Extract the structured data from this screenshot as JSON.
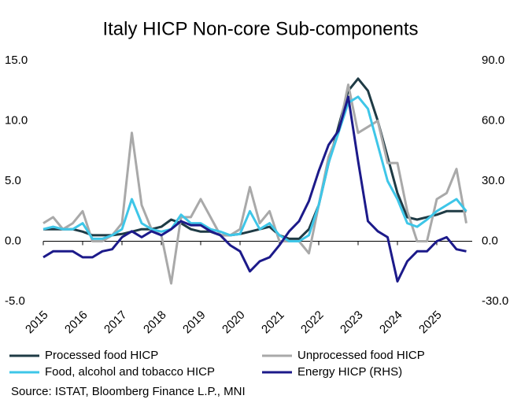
{
  "chart_data": {
    "type": "line",
    "title": "Italy HICP Non-core Sub-components",
    "source": "Source: ISTAT, Bloomberg Finance L.P., MNI",
    "x": [
      2015,
      2015.25,
      2015.5,
      2015.75,
      2016,
      2016.25,
      2016.5,
      2016.75,
      2017,
      2017.25,
      2017.5,
      2017.75,
      2018,
      2018.25,
      2018.5,
      2018.75,
      2019,
      2019.25,
      2019.5,
      2019.75,
      2020,
      2020.25,
      2020.5,
      2020.75,
      2021,
      2021.25,
      2021.5,
      2021.75,
      2022,
      2022.25,
      2022.5,
      2022.75,
      2023,
      2023.25,
      2023.5,
      2023.75,
      2024,
      2024.25,
      2024.5,
      2024.75,
      2025,
      2025.25,
      2025.5,
      2025.75
    ],
    "xlim": [
      2015,
      2025.9
    ],
    "xticks": [
      2015,
      2016,
      2017,
      2018,
      2019,
      2020,
      2021,
      2022,
      2023,
      2024,
      2025
    ],
    "ylim": [
      -5,
      15
    ],
    "yticks": [
      {
        "value": -5,
        "label": "-5.0"
      },
      {
        "value": 0,
        "label": "0.0"
      },
      {
        "value": 5,
        "label": "5.0"
      },
      {
        "value": 10,
        "label": "10.0"
      },
      {
        "value": 15,
        "label": "15.0"
      }
    ],
    "y2lim": [
      -30,
      90
    ],
    "y2ticks": [
      {
        "value": -30,
        "label": "-30.0"
      },
      {
        "value": 0,
        "label": "0.0"
      },
      {
        "value": 30,
        "label": "30.0"
      },
      {
        "value": 60,
        "label": "60.0"
      },
      {
        "value": 90,
        "label": "90.0"
      }
    ],
    "series": [
      {
        "name": "Processed food HICP",
        "color": "#1f3b45",
        "values": [
          1.0,
          1.0,
          1.0,
          1.0,
          0.8,
          0.5,
          0.5,
          0.5,
          0.6,
          0.8,
          1.0,
          1.0,
          1.2,
          1.8,
          1.5,
          1.0,
          0.8,
          0.8,
          0.5,
          0.5,
          0.6,
          0.8,
          1.0,
          1.2,
          0.5,
          0.2,
          0.2,
          1.0,
          3.0,
          6.5,
          9.5,
          12.5,
          13.5,
          12.5,
          10.0,
          7.0,
          4.0,
          2.0,
          1.8,
          2.0,
          2.2,
          2.5,
          2.5,
          2.5
        ]
      },
      {
        "name": "Unprocessed food HICP",
        "color": "#a9a9a9",
        "values": [
          1.5,
          2.0,
          1.0,
          1.5,
          2.5,
          0,
          0,
          0.5,
          1.5,
          9.0,
          3.0,
          1.0,
          0.5,
          -3.5,
          2.0,
          2.0,
          3.5,
          2.0,
          0.5,
          0.5,
          1.0,
          4.5,
          1.5,
          2.5,
          0,
          0,
          0,
          -1,
          3.0,
          7.0,
          9.0,
          13,
          9,
          9.5,
          10,
          6.5,
          6.5,
          2.5,
          0,
          0,
          3.5,
          4,
          6,
          1.5
        ]
      },
      {
        "name": "Food, alcohol and tobacco HICP",
        "color": "#3ec6e8",
        "values": [
          1.0,
          1.2,
          1.0,
          1.0,
          1.5,
          0.2,
          0.2,
          0.5,
          1.0,
          3.5,
          1.5,
          1.0,
          0.8,
          1.0,
          2.2,
          1.5,
          1.5,
          1.0,
          0.8,
          0.5,
          0.6,
          2.5,
          1.0,
          1.5,
          0.5,
          0,
          0,
          0.5,
          3.0,
          6.5,
          9.0,
          11.5,
          12.0,
          11.0,
          8.0,
          5.0,
          3.5,
          1.5,
          1.2,
          1.8,
          2.5,
          3.0,
          3.5,
          2.5
        ]
      },
      {
        "name": "Energy HICP (RHS)",
        "color": "#1c1a8a",
        "axis": "y2",
        "values": [
          -8,
          -5,
          -5,
          -5,
          -8,
          -8,
          -5,
          -4,
          2,
          5,
          2,
          5,
          3,
          6,
          10,
          8,
          8,
          5,
          3,
          -2,
          -5,
          -15,
          -10,
          -8,
          -2,
          5,
          10,
          20,
          35,
          48,
          55,
          72,
          40,
          10,
          5,
          2,
          -20,
          -10,
          -5,
          -5,
          0,
          2,
          -4,
          -5
        ]
      }
    ]
  }
}
